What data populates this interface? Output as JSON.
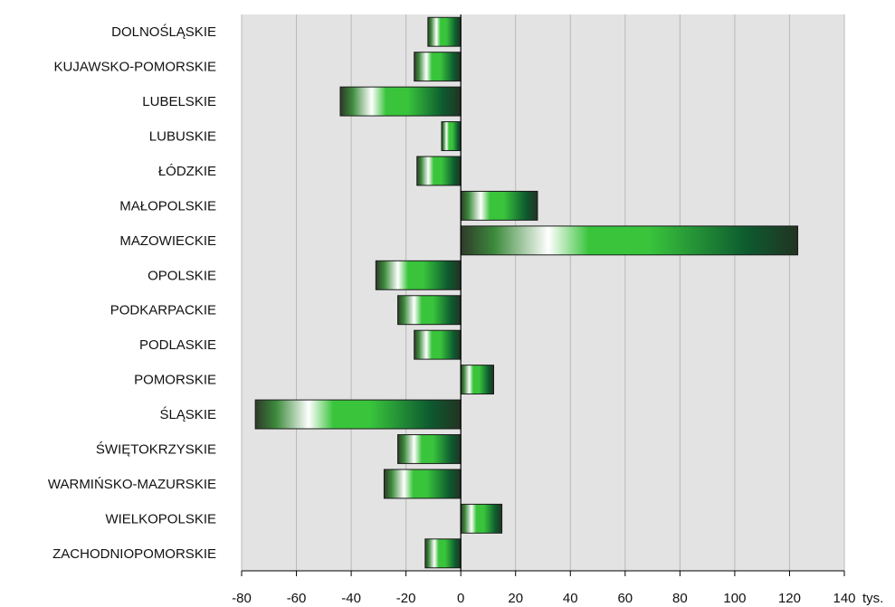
{
  "chart_data": {
    "type": "bar",
    "orientation": "horizontal",
    "categories": [
      "DOLNOŚLĄSKIE",
      "KUJAWSKO-POMORSKIE",
      "LUBELSKIE",
      "LUBUSKIE",
      "ŁÓDZKIE",
      "MAŁOPOLSKIE",
      "MAZOWIECKIE",
      "OPOLSKIE",
      "PODKARPACKIE",
      "PODLASKIE",
      "POMORSKIE",
      "ŚLĄSKIE",
      "ŚWIĘTOKRZYSKIE",
      "WARMIŃSKO-MAZURSKIE",
      "WIELKOPOLSKIE",
      "ZACHODNIOPOMORSKIE"
    ],
    "values": [
      -12,
      -17,
      -44,
      -7,
      -16,
      28,
      123,
      -31,
      -23,
      -17,
      12,
      -75,
      -23,
      -28,
      15,
      -13
    ],
    "xlim": [
      -80,
      140
    ],
    "xticks": [
      -80,
      -60,
      -40,
      -20,
      0,
      20,
      40,
      60,
      80,
      100,
      120,
      140
    ],
    "tick_labels": [
      "-80",
      "-60",
      "-40",
      "-20",
      "0",
      "20",
      "40",
      "60",
      "80",
      "100",
      "120",
      "140"
    ],
    "unit_label": "tys.",
    "grid": true,
    "plot_background": "#e3e3e3",
    "grid_color": "#b9b9b9",
    "bar_colors": [
      "#2f3a2a",
      "#3c8a3c",
      "#ffffff",
      "#39c43c",
      "#0d5a2f",
      "#223322"
    ]
  }
}
